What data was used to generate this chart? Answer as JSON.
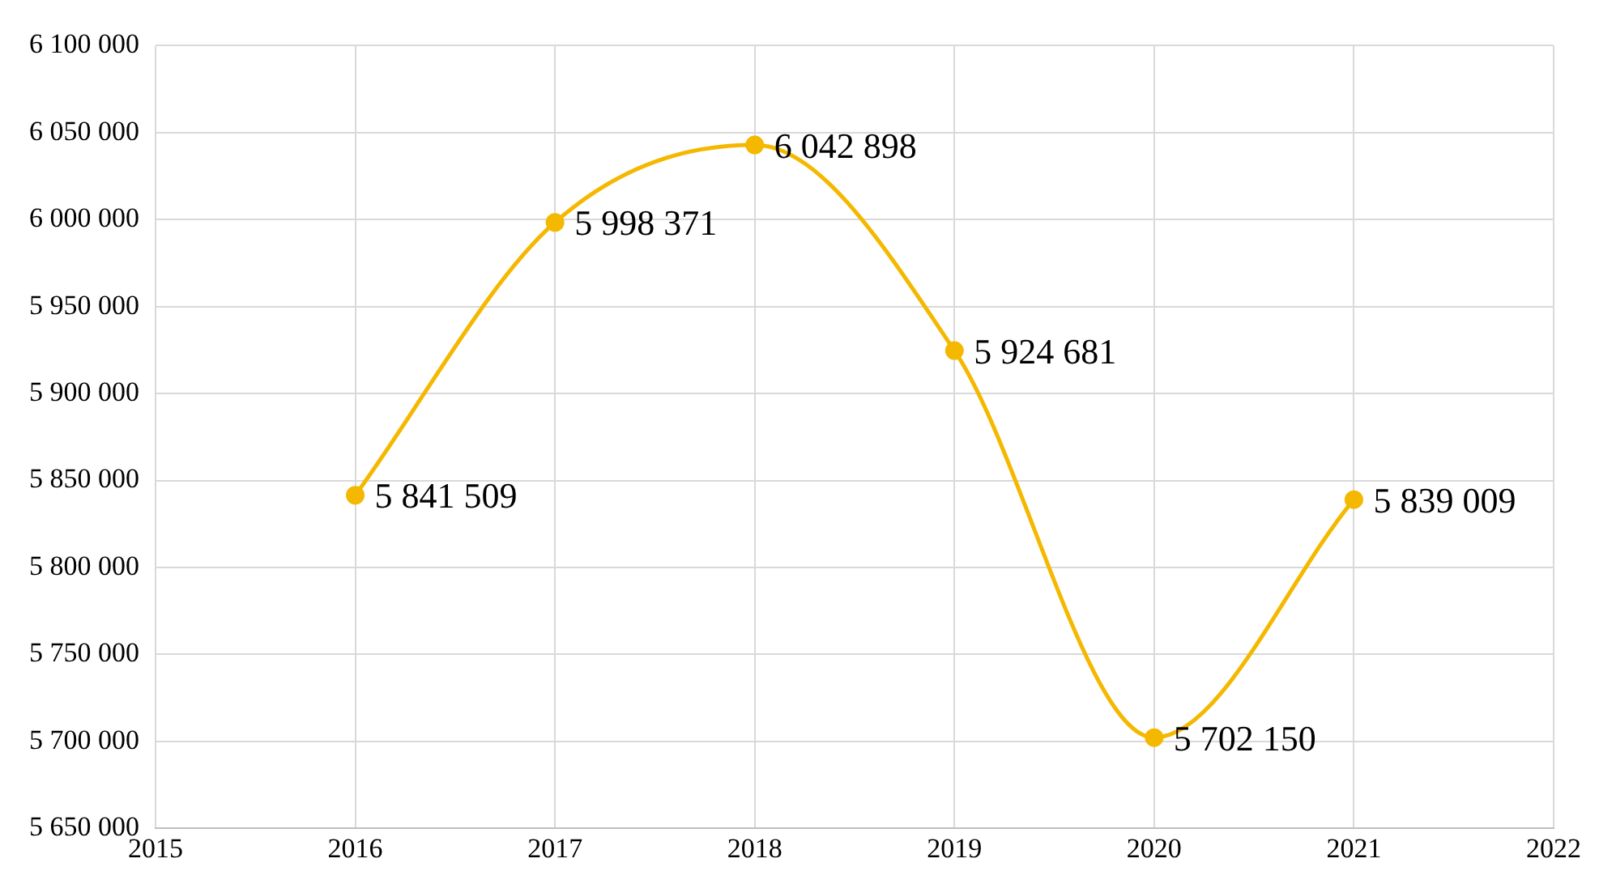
{
  "chart_data": {
    "type": "line",
    "x": [
      2016,
      2017,
      2018,
      2019,
      2020,
      2021
    ],
    "series": [
      {
        "color": "#f5b800",
        "values": [
          5841509,
          5998371,
          6042898,
          5924681,
          5702150,
          5839009
        ],
        "value_labels": [
          "5 841 509",
          "5 998 371",
          "6 042 898",
          "5 924 681",
          "5 702 150",
          "5 839 009"
        ]
      }
    ],
    "xlim": [
      2015,
      2022
    ],
    "xticks": [
      2015,
      2016,
      2017,
      2018,
      2019,
      2020,
      2021,
      2022
    ],
    "ylim": [
      5650000,
      6100000
    ],
    "yticks": [
      {
        "value": 5650000,
        "label": "5 650 000"
      },
      {
        "value": 5700000,
        "label": "5 700 000"
      },
      {
        "value": 5750000,
        "label": "5 750 000"
      },
      {
        "value": 5800000,
        "label": "5 800 000"
      },
      {
        "value": 5850000,
        "label": "5 850 000"
      },
      {
        "value": 5900000,
        "label": "5 900 000"
      },
      {
        "value": 5950000,
        "label": "5 950 000"
      },
      {
        "value": 6000000,
        "label": "6 000 000"
      },
      {
        "value": 6050000,
        "label": "6 050 000"
      },
      {
        "value": 6100000,
        "label": "6 100 000"
      }
    ],
    "grid": true,
    "legend": false,
    "marker": "circle",
    "line_style": "solid"
  }
}
